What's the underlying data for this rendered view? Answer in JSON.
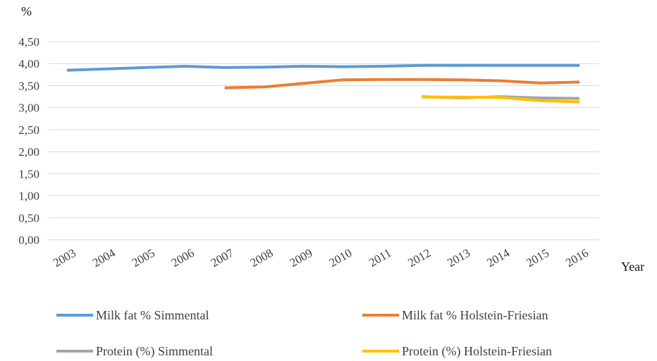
{
  "chart_data": {
    "type": "line",
    "ylabel": "%",
    "xlabel": "Year",
    "ylim": [
      0,
      4.5
    ],
    "y_ticks": [
      "0,00",
      "0,50",
      "1,00",
      "1,50",
      "2,00",
      "2,50",
      "3,00",
      "3,50",
      "4,00",
      "4,50"
    ],
    "categories": [
      "2003",
      "2004",
      "2005",
      "2006",
      "2007",
      "2008",
      "2009",
      "2010",
      "2011",
      "2012",
      "2013",
      "2014",
      "2015",
      "2016"
    ],
    "grid": true,
    "legend_position": "bottom",
    "series": [
      {
        "name": "Milk fat % Simmental",
        "color": "#5B9BD5",
        "values": [
          3.85,
          3.88,
          3.91,
          3.94,
          3.91,
          3.92,
          3.94,
          3.93,
          3.94,
          3.96,
          3.96,
          3.96,
          3.96,
          3.96
        ]
      },
      {
        "name": "Milk fat % Holstein-Friesian",
        "color": "#ED7D31",
        "values": [
          null,
          null,
          null,
          null,
          3.45,
          3.47,
          3.55,
          3.63,
          3.64,
          3.64,
          3.63,
          3.61,
          3.56,
          3.58
        ]
      },
      {
        "name": "Protein (%) Simmental",
        "color": "#A5A5A5",
        "values": [
          null,
          null,
          null,
          null,
          null,
          null,
          null,
          null,
          null,
          3.25,
          3.22,
          3.25,
          3.22,
          3.21
        ]
      },
      {
        "name": "Protein (%) Holstein-Friesian",
        "color": "#FFC000",
        "values": [
          null,
          null,
          null,
          null,
          null,
          null,
          null,
          null,
          null,
          3.24,
          3.24,
          3.23,
          3.16,
          3.13
        ]
      }
    ]
  }
}
